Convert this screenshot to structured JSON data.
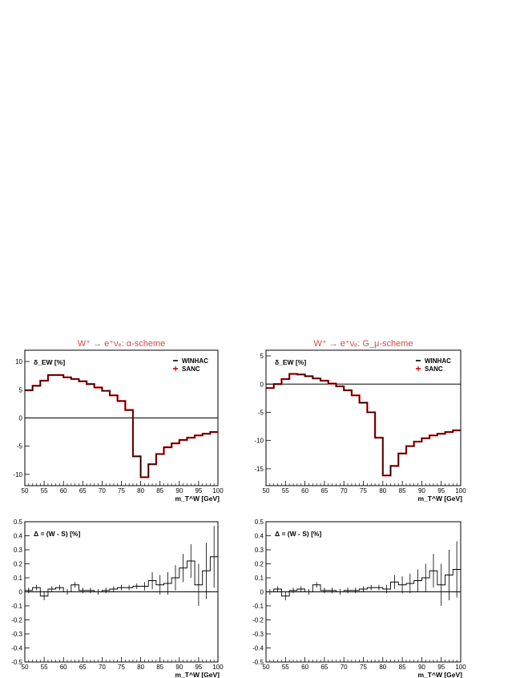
{
  "chart_data": [
    {
      "id": "alpha_delta",
      "type": "line",
      "title": "W⁺ → e⁺νₑ: α-scheme",
      "ylabel": "δ_EW [%]",
      "xlabel": "m_T^W [GeV]",
      "xlim": [
        50,
        100
      ],
      "ylim": [
        -12,
        12
      ],
      "x_ticks": [
        50,
        55,
        60,
        65,
        70,
        75,
        80,
        85,
        90,
        95,
        100
      ],
      "y_ticks": [
        -10,
        -5,
        0,
        5,
        10
      ],
      "legend": [
        "WINHAC",
        "SANC"
      ],
      "legend_position": "top-right",
      "series_colors": {
        "WINHAC": "#000000",
        "SANC": "#d40000"
      },
      "x": [
        51,
        53,
        55,
        57,
        59,
        61,
        63,
        65,
        67,
        69,
        71,
        73,
        75,
        77,
        79,
        81,
        83,
        85,
        87,
        89,
        91,
        93,
        95,
        97,
        99
      ],
      "y": [
        4.9,
        5.7,
        6.6,
        7.6,
        7.6,
        7.2,
        6.9,
        6.5,
        6.0,
        5.4,
        4.8,
        4.0,
        3.0,
        1.4,
        -6.8,
        -10.5,
        -8.2,
        -6.4,
        -5.2,
        -4.5,
        -3.9,
        -3.5,
        -3.1,
        -2.8,
        -2.5
      ]
    },
    {
      "id": "gmu_delta",
      "type": "line",
      "title": "W⁺ → e⁺νₑ: G_μ-scheme",
      "ylabel": "δ_EW [%]",
      "xlabel": "m_T^W [GeV]",
      "xlim": [
        50,
        100
      ],
      "ylim": [
        -18,
        6
      ],
      "x_ticks": [
        50,
        55,
        60,
        65,
        70,
        75,
        80,
        85,
        90,
        95,
        100
      ],
      "y_ticks": [
        -15,
        -10,
        -5,
        0,
        5
      ],
      "legend": [
        "WINHAC",
        "SANC"
      ],
      "legend_position": "top-right",
      "series_colors": {
        "WINHAC": "#000000",
        "SANC": "#d40000"
      },
      "x": [
        51,
        53,
        55,
        57,
        59,
        61,
        63,
        65,
        67,
        69,
        71,
        73,
        75,
        77,
        79,
        81,
        83,
        85,
        87,
        89,
        91,
        93,
        95,
        97,
        99
      ],
      "y": [
        -0.7,
        0.0,
        0.9,
        1.8,
        1.7,
        1.4,
        1.0,
        0.6,
        0.1,
        -0.4,
        -1.1,
        -2.0,
        -3.3,
        -5.0,
        -9.5,
        -16.2,
        -14.5,
        -12.3,
        -11.0,
        -10.2,
        -9.6,
        -9.1,
        -8.8,
        -8.5,
        -8.2
      ]
    },
    {
      "id": "alpha_diff",
      "type": "line",
      "ylabel": "Δ = (W - S) [%]",
      "xlabel": "m_T^W [GeV]",
      "xlim": [
        50,
        100
      ],
      "ylim": [
        -0.5,
        0.5
      ],
      "x_ticks": [
        50,
        55,
        60,
        65,
        70,
        75,
        80,
        85,
        90,
        95,
        100
      ],
      "y_ticks": [
        -0.5,
        -0.4,
        -0.3,
        -0.2,
        -0.1,
        0,
        0.1,
        0.2,
        0.3,
        0.4,
        0.5
      ],
      "x": [
        51,
        53,
        55,
        57,
        59,
        61,
        63,
        65,
        67,
        69,
        71,
        73,
        75,
        77,
        79,
        81,
        83,
        85,
        87,
        89,
        91,
        93,
        95,
        97,
        99
      ],
      "y": [
        0.01,
        0.03,
        -0.03,
        0.02,
        0.03,
        0.0,
        0.05,
        0.01,
        0.01,
        0.0,
        0.01,
        0.02,
        0.03,
        0.03,
        0.04,
        0.04,
        0.08,
        0.05,
        0.06,
        0.1,
        0.17,
        0.22,
        0.05,
        0.15,
        0.25
      ],
      "err": [
        0.02,
        0.02,
        0.03,
        0.02,
        0.02,
        0.02,
        0.02,
        0.02,
        0.02,
        0.02,
        0.02,
        0.02,
        0.02,
        0.02,
        0.02,
        0.03,
        0.06,
        0.07,
        0.08,
        0.09,
        0.1,
        0.12,
        0.15,
        0.2,
        0.22
      ]
    },
    {
      "id": "gmu_diff",
      "type": "line",
      "ylabel": "Δ = (W - S) [%]",
      "xlabel": "m_T^W [GeV]",
      "xlim": [
        50,
        100
      ],
      "ylim": [
        -0.5,
        0.5
      ],
      "x_ticks": [
        50,
        55,
        60,
        65,
        70,
        75,
        80,
        85,
        90,
        95,
        100
      ],
      "y_ticks": [
        -0.5,
        -0.4,
        -0.3,
        -0.2,
        -0.1,
        0,
        0.1,
        0.2,
        0.3,
        0.4,
        0.5
      ],
      "x": [
        51,
        53,
        55,
        57,
        59,
        61,
        63,
        65,
        67,
        69,
        71,
        73,
        75,
        77,
        79,
        81,
        83,
        85,
        87,
        89,
        91,
        93,
        95,
        97,
        99
      ],
      "y": [
        0.0,
        0.02,
        -0.03,
        0.01,
        0.02,
        0.0,
        0.05,
        0.01,
        0.01,
        0.0,
        0.01,
        0.01,
        0.02,
        0.03,
        0.03,
        0.02,
        0.07,
        0.05,
        0.06,
        0.08,
        0.1,
        0.15,
        0.05,
        0.12,
        0.16
      ],
      "err": [
        0.02,
        0.02,
        0.03,
        0.02,
        0.02,
        0.02,
        0.02,
        0.02,
        0.02,
        0.02,
        0.02,
        0.02,
        0.02,
        0.02,
        0.02,
        0.03,
        0.05,
        0.06,
        0.07,
        0.08,
        0.1,
        0.12,
        0.15,
        0.18,
        0.2
      ]
    }
  ]
}
